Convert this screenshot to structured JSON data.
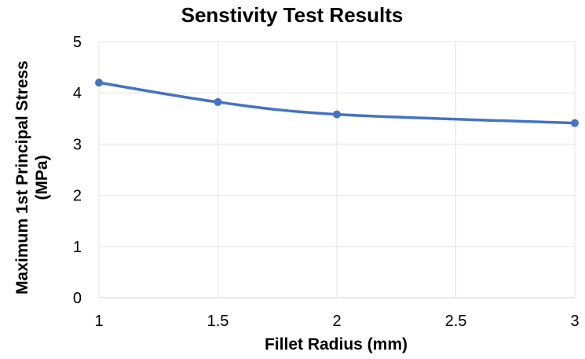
{
  "chart_data": {
    "type": "line",
    "title": "Senstivity Test Results",
    "xlabel": "Fillet Radius (mm)",
    "ylabel_lines": [
      "Maximum 1st Principal Stress",
      "(MPa)"
    ],
    "x": [
      1,
      1.5,
      2,
      3
    ],
    "series": [
      {
        "values": [
          4.2,
          3.82,
          3.58,
          3.41
        ],
        "color": "#4472c4",
        "smooth": true,
        "markers": true
      }
    ],
    "xlim": [
      1,
      3
    ],
    "ylim": [
      0,
      5
    ],
    "xticks": [
      "1",
      "1.5",
      "2",
      "2.5",
      "3"
    ],
    "yticks": [
      "0",
      "1",
      "2",
      "3",
      "4",
      "5"
    ],
    "grid": true,
    "legend": "none"
  }
}
